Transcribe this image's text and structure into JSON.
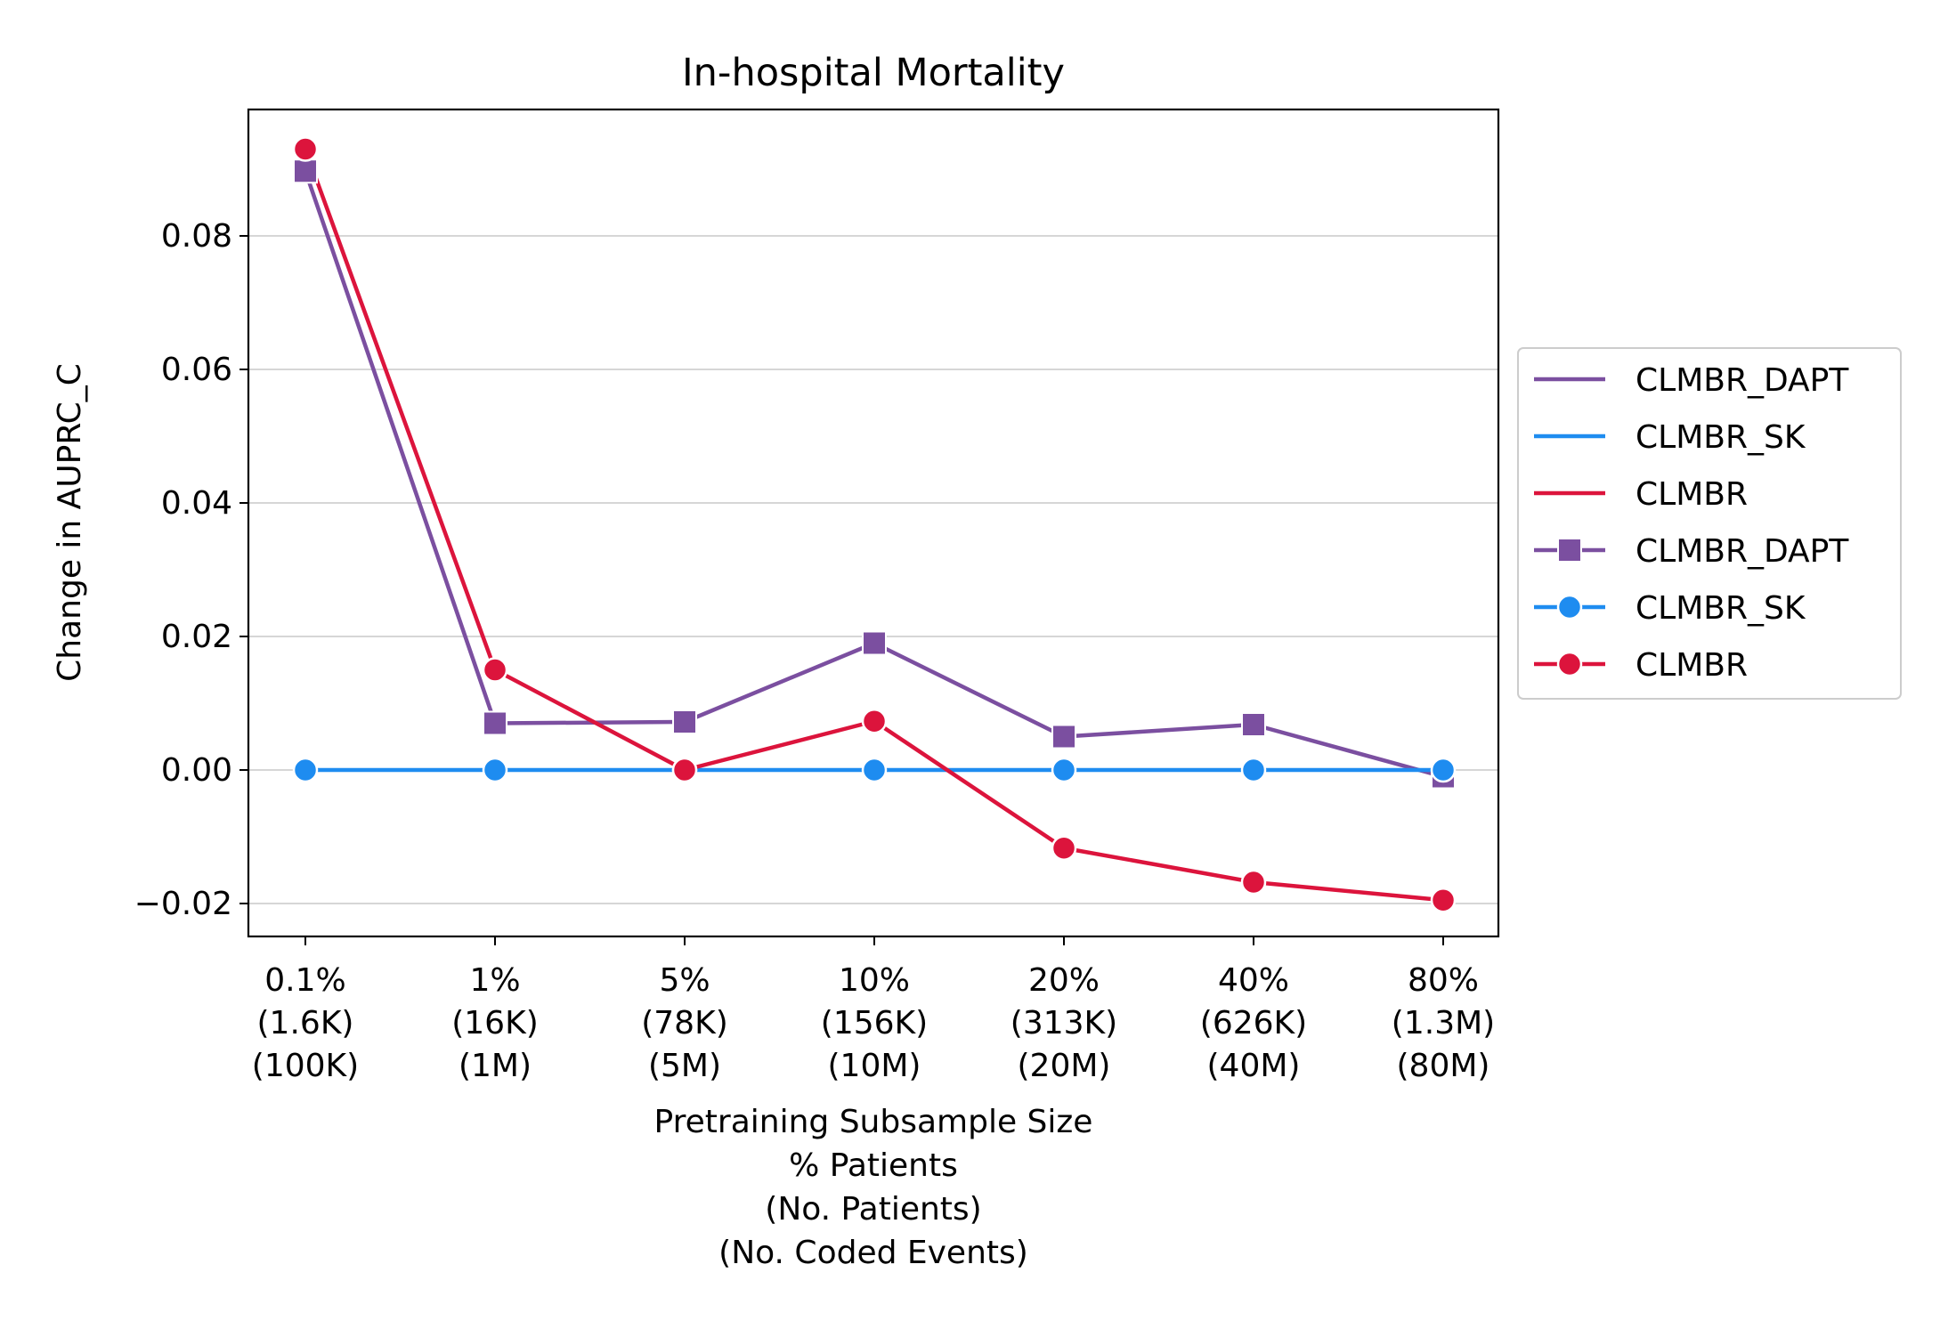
{
  "chart_data": {
    "type": "line",
    "title": "In-hospital Mortality",
    "ylabel": "Change in AUPRC_C",
    "xlabel_lines": [
      "Pretraining Subsample Size",
      "% Patients",
      "(No. Patients)",
      "(No. Coded Events)"
    ],
    "categories": [
      [
        "0.1%",
        "(1.6K)",
        "(100K)"
      ],
      [
        "1%",
        "(16K)",
        "(1M)"
      ],
      [
        "5%",
        "(78K)",
        "(5M)"
      ],
      [
        "10%",
        "(156K)",
        "(10M)"
      ],
      [
        "20%",
        "(313K)",
        "(20M)"
      ],
      [
        "40%",
        "(626K)",
        "(40M)"
      ],
      [
        "80%",
        "(1.3M)",
        "(80M)"
      ]
    ],
    "ylim": [
      -0.0255,
      0.0985
    ],
    "yticks": [
      -0.02,
      0.0,
      0.02,
      0.04,
      0.06,
      0.08
    ],
    "ytick_labels": [
      "−0.02",
      "0.00",
      "0.02",
      "0.04",
      "0.06",
      "0.08"
    ],
    "grid": "horizontal",
    "legend_position": "right-outside",
    "series": [
      {
        "name": "CLMBR_DAPT",
        "color": "#7b4fa0",
        "marker": "square",
        "values": [
          0.0897,
          0.007,
          0.0072,
          0.019,
          0.005,
          0.0068,
          -0.001
        ]
      },
      {
        "name": "CLMBR_SK",
        "color": "#1e8cf0",
        "marker": "circle",
        "values": [
          0.0,
          0.0,
          0.0,
          0.0,
          0.0,
          0.0,
          0.0
        ]
      },
      {
        "name": "CLMBR",
        "color": "#dc143c",
        "marker": "circle",
        "values": [
          0.093,
          0.015,
          0.0,
          0.0073,
          -0.0117,
          -0.0168,
          -0.0195
        ]
      }
    ],
    "legend": [
      {
        "label": "CLMBR_DAPT",
        "series": 0,
        "marker": "none"
      },
      {
        "label": "CLMBR_SK",
        "series": 1,
        "marker": "none"
      },
      {
        "label": "CLMBR",
        "series": 2,
        "marker": "none"
      },
      {
        "label": "CLMBR_DAPT",
        "series": 0,
        "marker": "square"
      },
      {
        "label": "CLMBR_SK",
        "series": 1,
        "marker": "circle"
      },
      {
        "label": "CLMBR",
        "series": 2,
        "marker": "circle"
      }
    ]
  }
}
